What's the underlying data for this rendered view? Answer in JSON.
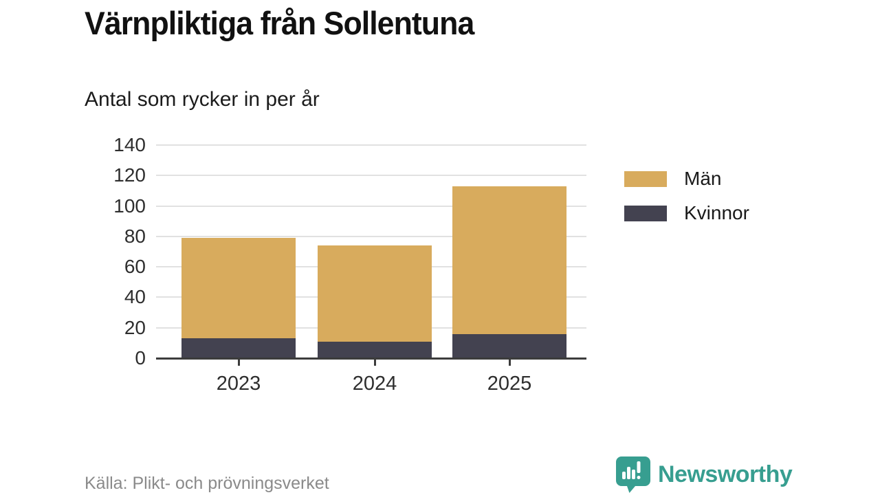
{
  "page": {
    "title": "Värnpliktiga från Sollentuna",
    "subtitle": "Antal som rycker in per år",
    "source": "Källa: Plikt- och prövningsverket"
  },
  "brand": {
    "name": "Newsworthy",
    "icon": "speech-bubble-bar-chart-icon",
    "color": "#379e90"
  },
  "colors": {
    "men": "#d8ab5d",
    "women": "#434250",
    "grid": "#e1e1e1",
    "axis": "#3c3c3c",
    "title_text": "#111111",
    "tick_text": "#2e2e2e",
    "muted_text": "#8a8a8a"
  },
  "chart_data": {
    "type": "bar",
    "stacked": true,
    "title": "Värnpliktiga från Sollentuna",
    "subtitle": "Antal som rycker in per år",
    "categories": [
      "2023",
      "2024",
      "2025"
    ],
    "series": [
      {
        "name": "Män",
        "color": "#d8ab5d",
        "values": [
          66,
          63,
          97
        ]
      },
      {
        "name": "Kvinnor",
        "color": "#434250",
        "values": [
          13,
          11,
          16
        ]
      }
    ],
    "stack_order_bottom_to_top": [
      "Kvinnor",
      "Män"
    ],
    "totals": [
      79,
      74,
      113
    ],
    "xlabel": "",
    "ylabel": "",
    "ylim": [
      0,
      140
    ],
    "yticks": [
      0,
      20,
      40,
      60,
      80,
      100,
      120,
      140
    ],
    "grid": true,
    "legend_position": "right",
    "legend": [
      "Män",
      "Kvinnor"
    ]
  }
}
